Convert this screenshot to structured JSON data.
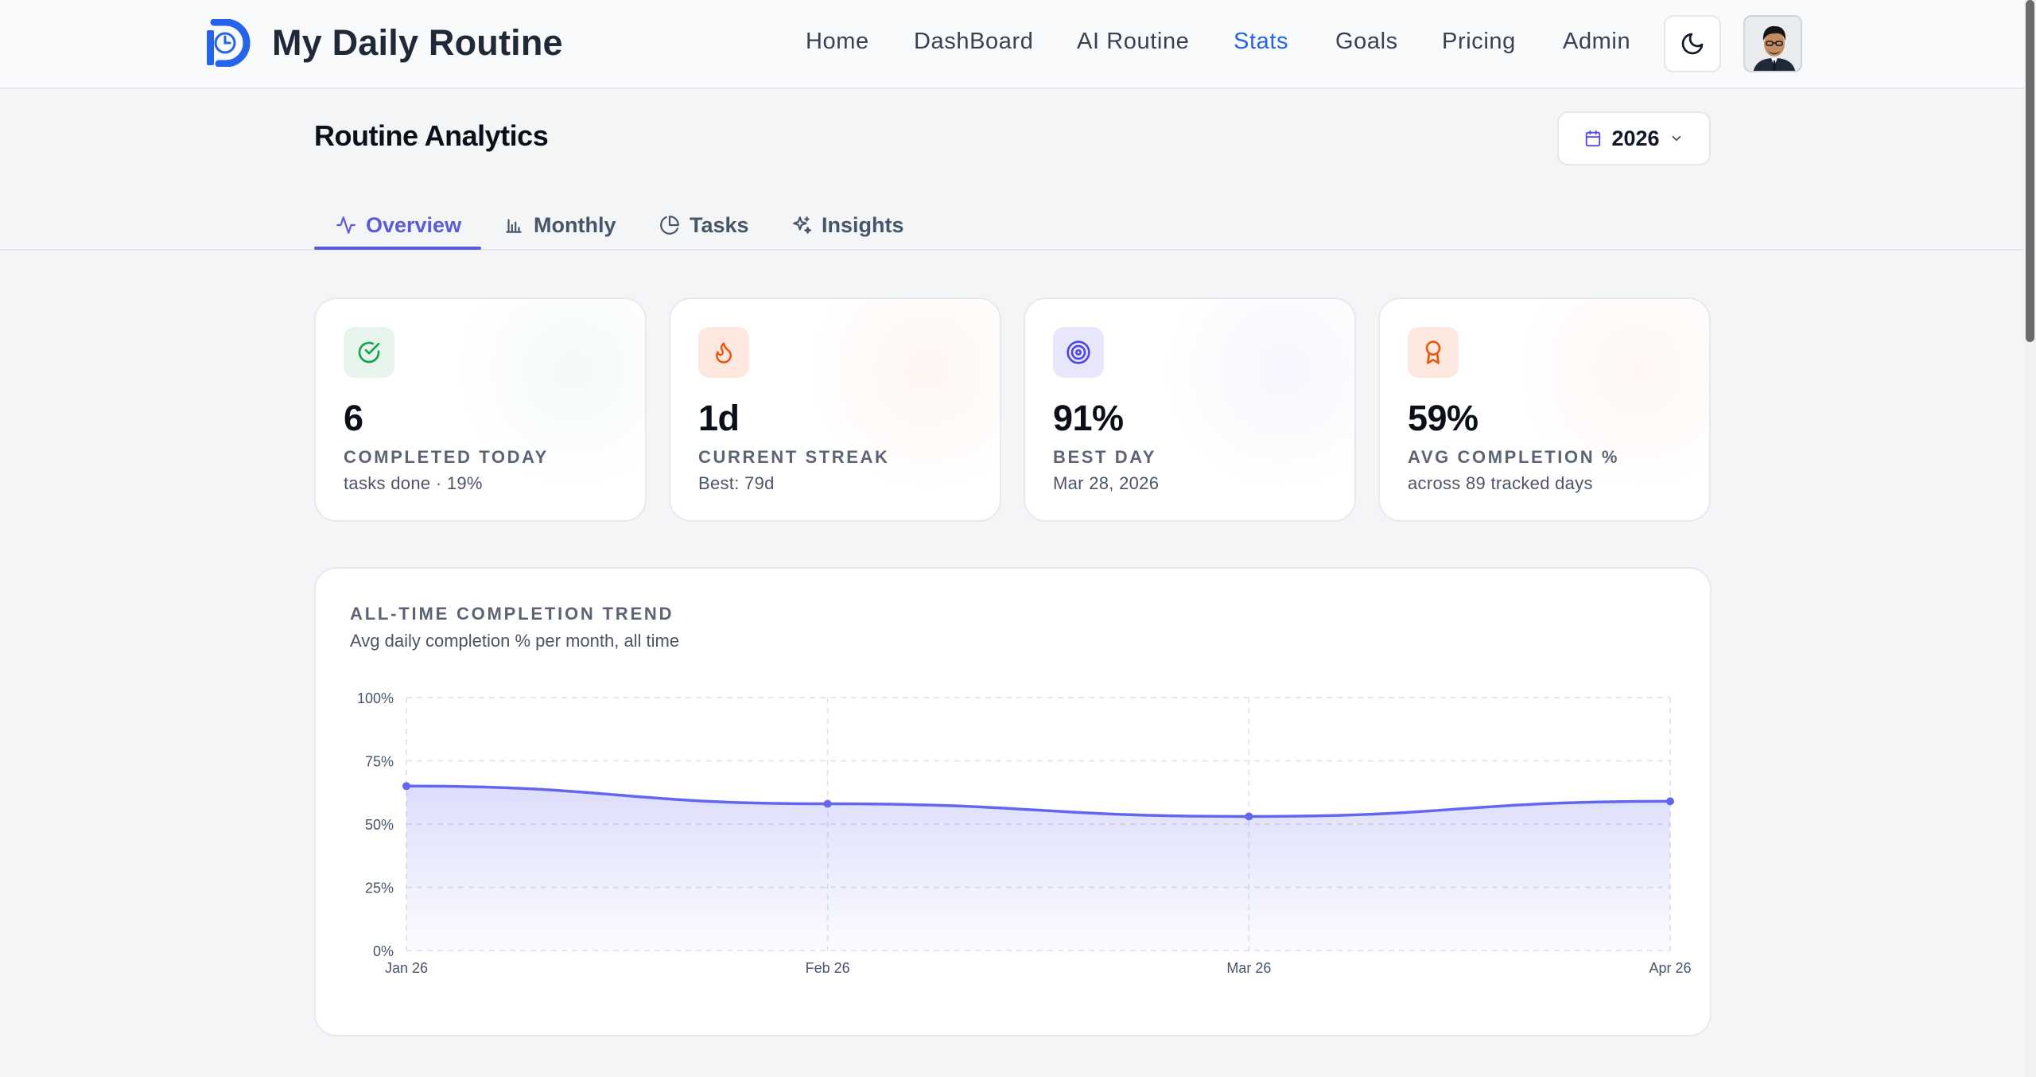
{
  "app": {
    "name": "My Daily Routine"
  },
  "nav": {
    "items": [
      {
        "label": "Home",
        "active": false
      },
      {
        "label": "DashBoard",
        "active": false
      },
      {
        "label": "AI Routine",
        "active": false
      },
      {
        "label": "Stats",
        "active": true
      },
      {
        "label": "Goals",
        "active": false
      },
      {
        "label": "Pricing",
        "active": false
      },
      {
        "label": "Admin",
        "active": false
      }
    ],
    "theme_toggle_icon": "moon-icon",
    "avatar_icon": "user-avatar"
  },
  "page": {
    "title": "Routine Analytics",
    "year_select": {
      "value": "2026",
      "icon": "calendar-icon"
    }
  },
  "tabs": [
    {
      "label": "Overview",
      "icon": "activity-icon",
      "active": true
    },
    {
      "label": "Monthly",
      "icon": "bar-chart-icon",
      "active": false
    },
    {
      "label": "Tasks",
      "icon": "pie-chart-icon",
      "active": false
    },
    {
      "label": "Insights",
      "icon": "sparkles-icon",
      "active": false
    }
  ],
  "stats": [
    {
      "value": "6",
      "label": "COMPLETED TODAY",
      "sub": "tasks done · 19%",
      "icon": "check-circle-icon",
      "color": "#16a34a",
      "bg": "#e6f4ec"
    },
    {
      "value": "1d",
      "label": "CURRENT STREAK",
      "sub": "Best: 79d",
      "icon": "flame-icon",
      "color": "#ea580c",
      "bg": "#fde8df"
    },
    {
      "value": "91%",
      "label": "BEST DAY",
      "sub": "Mar 28, 2026",
      "icon": "target-icon",
      "color": "#4f46e5",
      "bg": "#e8e7fb"
    },
    {
      "value": "59%",
      "label": "AVG COMPLETION %",
      "sub": "across 89 tracked days",
      "icon": "award-icon",
      "color": "#ea580c",
      "bg": "#fde8df"
    }
  ],
  "chart": {
    "title": "ALL-TIME COMPLETION TREND",
    "subtitle": "Avg daily completion % per month, all time"
  },
  "chart_data": {
    "type": "area",
    "title": "ALL-TIME COMPLETION TREND",
    "subtitle": "Avg daily completion % per month, all time",
    "categories": [
      "Jan 26",
      "Feb 26",
      "Mar 26",
      "Apr 26"
    ],
    "series": [
      {
        "values": [
          65,
          58,
          53,
          59
        ],
        "color": "#6366f1"
      }
    ],
    "y_ticks": [
      "0%",
      "25%",
      "50%",
      "75%",
      "100%"
    ],
    "ylim": [
      0,
      100
    ],
    "grid": true,
    "xlabel": "",
    "ylabel": ""
  }
}
